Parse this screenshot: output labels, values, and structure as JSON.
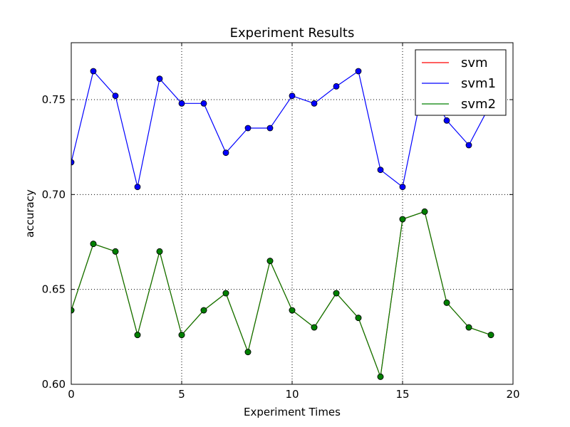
{
  "chart_data": {
    "type": "line",
    "title": "Experiment Results",
    "xlabel": "Experiment Times",
    "ylabel": "accuracy",
    "xlim": [
      0,
      20
    ],
    "ylim": [
      0.6,
      0.78
    ],
    "xticks": [
      0,
      5,
      10,
      15,
      20
    ],
    "xtick_labels": [
      "0",
      "5",
      "10",
      "15",
      "20"
    ],
    "yticks": [
      0.6,
      0.65,
      0.7,
      0.75
    ],
    "ytick_labels": [
      "0.60",
      "0.65",
      "0.70",
      "0.75"
    ],
    "grid": true,
    "legend_position": "top-right",
    "x": [
      0,
      1,
      2,
      3,
      4,
      5,
      6,
      7,
      8,
      9,
      10,
      11,
      12,
      13,
      14,
      15,
      16,
      17,
      18,
      19
    ],
    "series": [
      {
        "name": "svm",
        "color": "#ff0000",
        "marker_color": "#008000",
        "values": [
          0.639,
          0.674,
          0.67,
          0.626,
          0.67,
          0.626,
          0.639,
          0.648,
          0.617,
          0.665,
          0.639,
          0.63,
          0.648,
          0.635,
          0.604,
          0.687,
          0.691,
          0.643,
          0.63,
          0.626
        ]
      },
      {
        "name": "svm1",
        "color": "#0000ff",
        "marker_color": "#0000ff",
        "values": [
          0.717,
          0.765,
          0.752,
          0.704,
          0.761,
          0.748,
          0.748,
          0.722,
          0.735,
          0.735,
          0.752,
          0.748,
          0.757,
          0.765,
          0.713,
          0.704,
          0.761,
          0.739,
          0.726,
          0.748
        ]
      },
      {
        "name": "svm2",
        "color": "#008000",
        "marker_color": "#008000",
        "values": [
          0.639,
          0.674,
          0.67,
          0.626,
          0.67,
          0.626,
          0.639,
          0.648,
          0.617,
          0.665,
          0.639,
          0.63,
          0.648,
          0.635,
          0.604,
          0.687,
          0.691,
          0.643,
          0.63,
          0.626
        ]
      }
    ]
  }
}
